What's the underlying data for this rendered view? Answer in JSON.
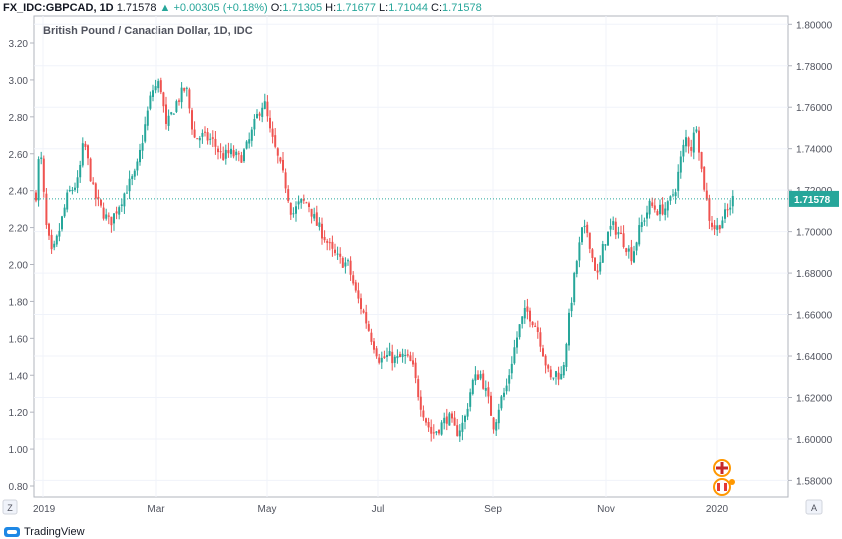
{
  "header": {
    "symbol": "FX_IDC:GBPCAD, 1D",
    "last": "1.71578",
    "change": "+0.00305 (+0.18%)",
    "o_label": "O:",
    "o_value": "1.71305",
    "h_label": "H:",
    "h_value": "1.71677",
    "l_label": "L:",
    "l_value": "1.71044",
    "c_label": "C:",
    "c_value": "1.71578"
  },
  "brand": "TradingView",
  "colors": {
    "up": "#26a69a",
    "down": "#ef5350",
    "grid": "#f0f3fa",
    "axis": "#b2b5be",
    "price_line": "#26a69a"
  },
  "chart_data": {
    "type": "candlestick",
    "title": "British Pound / Canadian Dollar, 1D, IDC",
    "left_axis": {
      "ticks": [
        "3.20",
        "3.00",
        "2.80",
        "2.60",
        "2.40",
        "2.20",
        "2.00",
        "1.80",
        "1.60",
        "1.40",
        "1.20",
        "1.00",
        "0.80"
      ]
    },
    "right_axis": {
      "min": 1.572,
      "max": 1.804,
      "ticks": [
        "1.80000",
        "1.78000",
        "1.76000",
        "1.74000",
        "1.72000",
        "1.70000",
        "1.68000",
        "1.66000",
        "1.64000",
        "1.62000",
        "1.60000",
        "1.58000"
      ]
    },
    "x_axis": {
      "labels": [
        "2019",
        "Mar",
        "May",
        "Jul",
        "Sep",
        "Nov",
        "2020"
      ]
    },
    "last_price": 1.71578,
    "last_price_label": "1.71578",
    "corner_left": "Z",
    "corner_right": "A",
    "grid": true,
    "path": [
      [
        0,
        1.718
      ],
      [
        4,
        1.742
      ],
      [
        10,
        1.703
      ],
      [
        16,
        1.688
      ],
      [
        22,
        1.698
      ],
      [
        32,
        1.718
      ],
      [
        42,
        1.724
      ],
      [
        48,
        1.744
      ],
      [
        58,
        1.718
      ],
      [
        66,
        1.71
      ],
      [
        74,
        1.704
      ],
      [
        84,
        1.714
      ],
      [
        92,
        1.722
      ],
      [
        100,
        1.728
      ],
      [
        108,
        1.748
      ],
      [
        116,
        1.768
      ],
      [
        124,
        1.772
      ],
      [
        130,
        1.75
      ],
      [
        140,
        1.762
      ],
      [
        150,
        1.77
      ],
      [
        158,
        1.745
      ],
      [
        166,
        1.746
      ],
      [
        176,
        1.744
      ],
      [
        186,
        1.736
      ],
      [
        194,
        1.738
      ],
      [
        204,
        1.735
      ],
      [
        212,
        1.742
      ],
      [
        222,
        1.757
      ],
      [
        228,
        1.763
      ],
      [
        234,
        1.748
      ],
      [
        242,
        1.735
      ],
      [
        250,
        1.722
      ],
      [
        256,
        1.708
      ],
      [
        264,
        1.714
      ],
      [
        272,
        1.714
      ],
      [
        280,
        1.704
      ],
      [
        288,
        1.698
      ],
      [
        296,
        1.69
      ],
      [
        304,
        1.686
      ],
      [
        312,
        1.684
      ],
      [
        320,
        1.67
      ],
      [
        328,
        1.66
      ],
      [
        336,
        1.648
      ],
      [
        344,
        1.638
      ],
      [
        352,
        1.64
      ],
      [
        360,
        1.638
      ],
      [
        368,
        1.64
      ],
      [
        376,
        1.636
      ],
      [
        384,
        1.618
      ],
      [
        390,
        1.609
      ],
      [
        396,
        1.602
      ],
      [
        404,
        1.606
      ],
      [
        412,
        1.611
      ],
      [
        420,
        1.603
      ],
      [
        428,
        1.608
      ],
      [
        436,
        1.627
      ],
      [
        444,
        1.632
      ],
      [
        452,
        1.619
      ],
      [
        458,
        1.606
      ],
      [
        464,
        1.618
      ],
      [
        470,
        1.624
      ],
      [
        478,
        1.643
      ],
      [
        484,
        1.655
      ],
      [
        490,
        1.662
      ],
      [
        496,
        1.658
      ],
      [
        502,
        1.652
      ],
      [
        508,
        1.64
      ],
      [
        514,
        1.628
      ],
      [
        520,
        1.632
      ],
      [
        526,
        1.63
      ],
      [
        534,
        1.662
      ],
      [
        540,
        1.684
      ],
      [
        546,
        1.7
      ],
      [
        552,
        1.7
      ],
      [
        556,
        1.688
      ],
      [
        562,
        1.678
      ],
      [
        568,
        1.695
      ],
      [
        576,
        1.703
      ],
      [
        582,
        1.7
      ],
      [
        588,
        1.695
      ],
      [
        596,
        1.688
      ],
      [
        604,
        1.702
      ],
      [
        614,
        1.713
      ],
      [
        622,
        1.71
      ],
      [
        632,
        1.712
      ],
      [
        640,
        1.722
      ],
      [
        646,
        1.738
      ],
      [
        650,
        1.745
      ],
      [
        656,
        1.74
      ],
      [
        660,
        1.754
      ],
      [
        666,
        1.728
      ],
      [
        670,
        1.717
      ],
      [
        674,
        1.705
      ],
      [
        680,
        1.701
      ],
      [
        686,
        1.706
      ],
      [
        692,
        1.71
      ],
      [
        697,
        1.716
      ]
    ]
  }
}
